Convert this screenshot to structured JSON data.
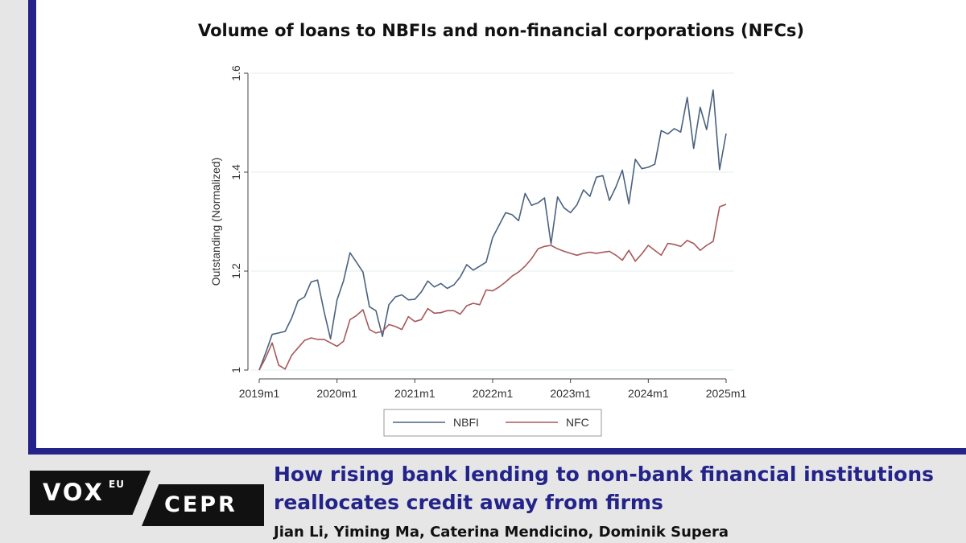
{
  "chart_title": "Volume of loans to NBFIs and non-financial corporations (NFCs)",
  "article": {
    "headline_line1": "How rising bank lending to non-bank financial institutions",
    "headline_line2": "reallocates credit away from firms",
    "authors": "Jian Li, Yiming Ma, Caterina Mendicino, Dominik Supera"
  },
  "logo": {
    "vox": "VOX",
    "vox_sup": "EU",
    "cepr": "CEPR"
  },
  "colors": {
    "nbfi": "#4a627f",
    "nfc": "#a8585b",
    "accent": "#23238a"
  },
  "chart_data": {
    "type": "line",
    "title": "Volume of loans to NBFIs and non-financial corporations (NFCs)",
    "xlabel": "",
    "ylabel": "Outstanding (Normalized)",
    "xlim": [
      0,
      72
    ],
    "ylim": [
      1,
      1.6
    ],
    "x_ticks": [
      {
        "x": 0,
        "label": "2019m1"
      },
      {
        "x": 12,
        "label": "2020m1"
      },
      {
        "x": 24,
        "label": "2021m1"
      },
      {
        "x": 36,
        "label": "2022m1"
      },
      {
        "x": 48,
        "label": "2023m1"
      },
      {
        "x": 60,
        "label": "2024m1"
      },
      {
        "x": 72,
        "label": "2025m1"
      }
    ],
    "y_ticks": [
      {
        "y": 1,
        "label": "1"
      },
      {
        "y": 1.2,
        "label": "1.2"
      },
      {
        "y": 1.4,
        "label": "1.4"
      },
      {
        "y": 1.6,
        "label": "1.6"
      }
    ],
    "grid": "horizontal",
    "legend_position": "bottom",
    "series": [
      {
        "name": "NBFI",
        "values": [
          1.0,
          1.035,
          1.072,
          1.075,
          1.078,
          1.105,
          1.14,
          1.148,
          1.178,
          1.182,
          1.118,
          1.063,
          1.142,
          1.18,
          1.237,
          1.218,
          1.198,
          1.128,
          1.12,
          1.068,
          1.132,
          1.148,
          1.152,
          1.142,
          1.143,
          1.158,
          1.18,
          1.168,
          1.175,
          1.165,
          1.172,
          1.188,
          1.213,
          1.202,
          1.21,
          1.218,
          1.268,
          1.293,
          1.318,
          1.314,
          1.302,
          1.357,
          1.333,
          1.338,
          1.348,
          1.255,
          1.35,
          1.328,
          1.318,
          1.334,
          1.364,
          1.351,
          1.39,
          1.393,
          1.343,
          1.37,
          1.404,
          1.336,
          1.426,
          1.407,
          1.41,
          1.416,
          1.484,
          1.477,
          1.488,
          1.481,
          1.551,
          1.448,
          1.531,
          1.486,
          1.566,
          1.405,
          1.478
        ]
      },
      {
        "name": "NFC",
        "values": [
          1.0,
          1.025,
          1.055,
          1.01,
          1.002,
          1.03,
          1.045,
          1.06,
          1.065,
          1.062,
          1.062,
          1.055,
          1.048,
          1.058,
          1.102,
          1.11,
          1.122,
          1.082,
          1.075,
          1.078,
          1.092,
          1.088,
          1.082,
          1.108,
          1.098,
          1.102,
          1.124,
          1.115,
          1.116,
          1.12,
          1.12,
          1.113,
          1.13,
          1.135,
          1.132,
          1.162,
          1.16,
          1.168,
          1.178,
          1.19,
          1.198,
          1.21,
          1.225,
          1.245,
          1.25,
          1.252,
          1.245,
          1.24,
          1.236,
          1.232,
          1.236,
          1.238,
          1.236,
          1.238,
          1.24,
          1.232,
          1.222,
          1.242,
          1.22,
          1.235,
          1.252,
          1.242,
          1.232,
          1.256,
          1.254,
          1.25,
          1.262,
          1.256,
          1.242,
          1.252,
          1.26,
          1.33,
          1.335
        ]
      }
    ],
    "series_start_x": 0
  }
}
